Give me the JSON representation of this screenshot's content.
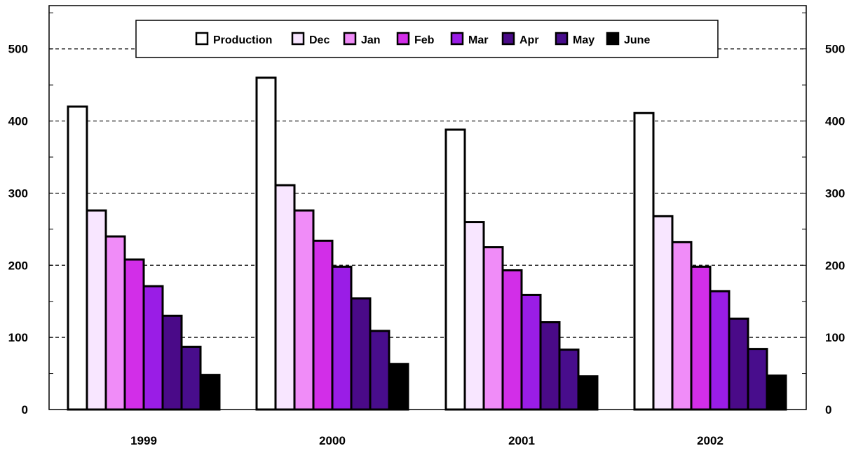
{
  "chart_data": {
    "type": "bar",
    "title": "",
    "xlabel": "",
    "ylabel": "",
    "categories": [
      "1999",
      "2000",
      "2001",
      "2002"
    ],
    "ylim": [
      0,
      560
    ],
    "y_ticks": [
      "0",
      "100",
      "200",
      "300",
      "400",
      "500"
    ],
    "y_tick_values": [
      0,
      100,
      200,
      300,
      400,
      500
    ],
    "minor_tick_step": 50,
    "grid": "horizontal dashed",
    "right_axis": true,
    "legend_position": "top",
    "series": [
      {
        "name": "Production",
        "color": "#ffffff",
        "values": [
          420,
          460,
          388,
          411
        ]
      },
      {
        "name": "Dec",
        "color": "#f8e6ff",
        "values": [
          276,
          311,
          260,
          268
        ]
      },
      {
        "name": "Jan",
        "color": "#f08cf8",
        "values": [
          240,
          276,
          225,
          232
        ]
      },
      {
        "name": "Feb",
        "color": "#d22ee8",
        "values": [
          208,
          234,
          193,
          198
        ]
      },
      {
        "name": "Mar",
        "color": "#9a1de6",
        "values": [
          171,
          198,
          159,
          164
        ]
      },
      {
        "name": "Apr",
        "color": "#4a0a88",
        "values": [
          130,
          154,
          121,
          126
        ]
      },
      {
        "name": "May",
        "color": "#480d8c",
        "values": [
          87,
          109,
          83,
          84
        ]
      },
      {
        "name": "June",
        "color": "#000000",
        "values": [
          48,
          63,
          46,
          47
        ]
      }
    ]
  }
}
